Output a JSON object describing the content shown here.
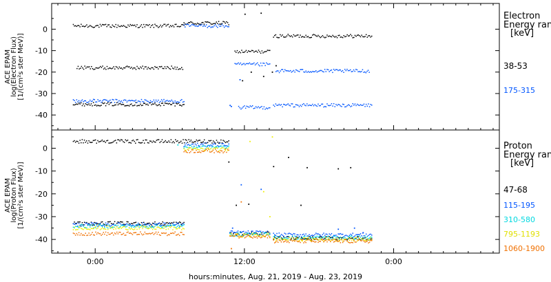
{
  "chart_data": [
    {
      "type": "scatter",
      "panel": "electron",
      "ylabel_lines": [
        "ACE EPAM",
        "log(Electron Flux)",
        "[1/(cm²s ster MeV)]"
      ],
      "ylim": [
        -47,
        12
      ],
      "yticks": [
        0,
        -10,
        -20,
        -30,
        -40
      ],
      "legend_title_lines": [
        "Electron",
        "Energy ranges",
        "[keV]"
      ],
      "legend_placement": "right",
      "series": [
        {
          "name": "38-53",
          "color": "#000000",
          "segments": [
            {
              "x_start": -1.8,
              "x_end": 7.1,
              "y": 1.5
            },
            {
              "x_start": 7.1,
              "x_end": 10.7,
              "y": 2.8
            },
            {
              "x_start": 11.2,
              "x_end": 14.0,
              "y": -10.5
            },
            {
              "x_start": 14.3,
              "x_end": 22.2,
              "y": -3.2
            },
            {
              "x_start": -1.5,
              "x_end": 7.0,
              "y": -18.0
            },
            {
              "x_start": -1.8,
              "x_end": 7.1,
              "y": -35.0
            }
          ],
          "points": [
            {
              "x": 12.0,
              "y": 7.0
            },
            {
              "x": 13.3,
              "y": 7.5
            },
            {
              "x": 12.5,
              "y": -20.0
            },
            {
              "x": 13.5,
              "y": -22.0
            },
            {
              "x": 11.8,
              "y": -24.0
            },
            {
              "x": 14.2,
              "y": -20.0
            },
            {
              "x": 14.5,
              "y": -17.0
            }
          ]
        },
        {
          "name": "175-315",
          "color": "#0055ff",
          "segments": [
            {
              "x_start": -1.8,
              "x_end": 7.1,
              "y": -33.5
            },
            {
              "x_start": 7.1,
              "x_end": 10.7,
              "y": 1.5
            },
            {
              "x_start": 11.2,
              "x_end": 14.0,
              "y": -16.5
            },
            {
              "x_start": 14.3,
              "x_end": 22.2,
              "y": -35.5
            },
            {
              "x_start": 11.5,
              "x_end": 14.0,
              "y": -36.5
            },
            {
              "x_start": 14.5,
              "x_end": 22.0,
              "y": -19.5
            }
          ],
          "points": [
            {
              "x": 10.8,
              "y": -35.5
            },
            {
              "x": 10.9,
              "y": -36.0
            },
            {
              "x": 11.6,
              "y": -23.5
            }
          ]
        }
      ]
    },
    {
      "type": "scatter",
      "panel": "proton",
      "ylabel_lines": [
        "ACE EPAM",
        "log(Proton Flux)",
        "[1/(cm²s ster MeV)]"
      ],
      "ylim": [
        -46,
        8
      ],
      "yticks": [
        0,
        -10,
        -20,
        -30,
        -40
      ],
      "legend_title_lines": [
        "Proton",
        "Energy ranges",
        "[keV]"
      ],
      "legend_placement": "right",
      "series": [
        {
          "name": "47-68",
          "color": "#000000",
          "segments": [
            {
              "x_start": -1.8,
              "x_end": 10.7,
              "y": 3.0
            },
            {
              "x_start": 10.8,
              "x_end": 14.0,
              "y": -37.5
            },
            {
              "x_start": 14.3,
              "x_end": 22.2,
              "y": -39.5
            },
            {
              "x_start": -1.8,
              "x_end": 7.1,
              "y": -33.0
            }
          ],
          "points": [
            {
              "x": 10.7,
              "y": -6.0
            },
            {
              "x": 14.3,
              "y": -8.0
            },
            {
              "x": 15.5,
              "y": -4.0
            },
            {
              "x": 17.0,
              "y": -8.5
            },
            {
              "x": 19.5,
              "y": -9.0
            },
            {
              "x": 20.5,
              "y": -8.5
            },
            {
              "x": 11.3,
              "y": -25.0
            },
            {
              "x": 12.3,
              "y": -24.5
            },
            {
              "x": 16.5,
              "y": -25.0
            }
          ]
        },
        {
          "name": "115-195",
          "color": "#0055ff",
          "segments": [
            {
              "x_start": 7.1,
              "x_end": 10.7,
              "y": 1.5
            },
            {
              "x_start": -1.8,
              "x_end": 7.1,
              "y": -33.5
            },
            {
              "x_start": 10.8,
              "x_end": 14.0,
              "y": -37.0
            },
            {
              "x_start": 14.3,
              "x_end": 22.2,
              "y": -38.0
            }
          ],
          "points": [
            {
              "x": 11.7,
              "y": -16.0
            },
            {
              "x": 13.3,
              "y": -18.0
            },
            {
              "x": 11.0,
              "y": -35.0
            },
            {
              "x": 19.5,
              "y": -35.5
            },
            {
              "x": 20.8,
              "y": -35.0
            },
            {
              "x": 21.5,
              "y": -37.0
            }
          ]
        },
        {
          "name": "310-580",
          "color": "#00d8e0",
          "segments": [
            {
              "x_start": 7.1,
              "x_end": 10.7,
              "y": 0.5
            },
            {
              "x_start": -1.8,
              "x_end": 7.1,
              "y": -34.2
            },
            {
              "x_start": 10.8,
              "x_end": 14.0,
              "y": -37.8
            },
            {
              "x_start": 14.3,
              "x_end": 22.2,
              "y": -39.2
            }
          ],
          "points": [
            {
              "x": 6.6,
              "y": 1.5
            }
          ]
        },
        {
          "name": "795-1193",
          "color": "#eeee00",
          "segments": [
            {
              "x_start": 7.1,
              "x_end": 10.7,
              "y": -0.5
            },
            {
              "x_start": -1.8,
              "x_end": 7.1,
              "y": -35.0
            },
            {
              "x_start": 10.8,
              "x_end": 14.0,
              "y": -38.2
            },
            {
              "x_start": 14.3,
              "x_end": 22.2,
              "y": -40.0
            }
          ],
          "points": [
            {
              "x": 12.4,
              "y": 3.0
            },
            {
              "x": 14.2,
              "y": 5.0
            },
            {
              "x": 13.5,
              "y": -19.0
            },
            {
              "x": 14.0,
              "y": -30.0
            }
          ]
        },
        {
          "name": "1060-1900",
          "color": "#f07000",
          "segments": [
            {
              "x_start": 7.1,
              "x_end": 10.7,
              "y": -1.2
            },
            {
              "x_start": -1.8,
              "x_end": 7.1,
              "y": -37.5
            },
            {
              "x_start": 10.8,
              "x_end": 14.0,
              "y": -38.6
            },
            {
              "x_start": 14.3,
              "x_end": 22.2,
              "y": -40.8
            }
          ],
          "points": [
            {
              "x": 10.9,
              "y": -44.0
            },
            {
              "x": 11.7,
              "y": -23.5
            }
          ]
        }
      ]
    }
  ],
  "x_axis": {
    "xlabel": "hours:minutes, Aug. 21, 2019 - Aug. 23, 2019",
    "range_hours": [
      -3.5,
      32.5
    ],
    "ticks": [
      {
        "hour": 0,
        "label": "0:00"
      },
      {
        "hour": 12,
        "label": "12:00"
      },
      {
        "hour": 24,
        "label": "0:00"
      }
    ],
    "minor_tick_step_hours": 1
  }
}
